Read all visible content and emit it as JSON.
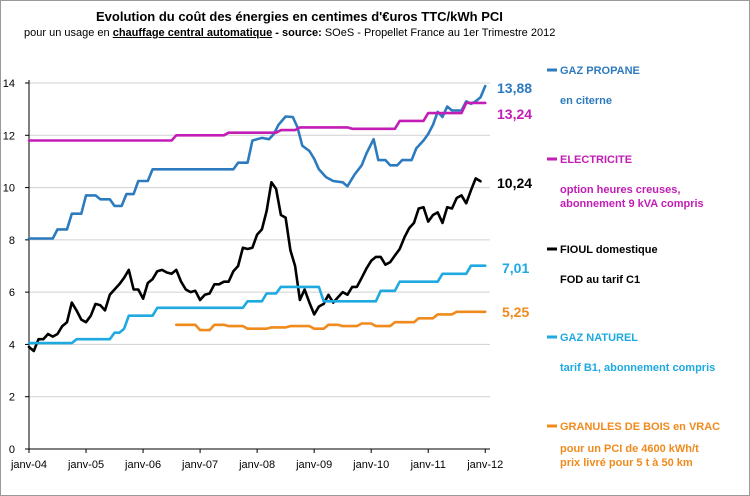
{
  "header": {
    "title": "Evolution du coût des énergies en centimes d'€uros TTC/kWh PCI",
    "subtitle_prefix": "pour un usage en",
    "subtitle_emphasis": "chauffage central automatique",
    "subtitle_sep": " - source:",
    "subtitle_source": " SOeS - Propellet France au 1er Trimestre 2012"
  },
  "chart_data": {
    "type": "line",
    "title": "Evolution du coût des énergies en centimes d'€uros TTC/kWh PCI",
    "ylim": [
      0,
      14
    ],
    "yticks": [
      "0",
      "2",
      "4",
      "6",
      "8",
      "10",
      "12",
      "14"
    ],
    "xlim": [
      0,
      97
    ],
    "xtick_labels": [
      "janv-04",
      "janv-05",
      "janv-06",
      "janv-07",
      "janv-08",
      "janv-09",
      "janv-10",
      "janv-11",
      "janv-12"
    ],
    "grid": "horizontal",
    "legend_position": "right",
    "series": [
      {
        "name": "GAZ PROPANE",
        "description": [
          "en citerne"
        ],
        "end_label": "13,88",
        "color": "#2d7bbf",
        "points": [
          [
            0,
            8.05
          ],
          [
            5,
            8.05
          ],
          [
            6,
            8.4
          ],
          [
            8,
            8.4
          ],
          [
            9,
            9.0
          ],
          [
            11,
            9.0
          ],
          [
            12,
            9.7
          ],
          [
            14,
            9.7
          ],
          [
            15,
            9.55
          ],
          [
            17,
            9.55
          ],
          [
            18,
            9.3
          ],
          [
            19.5,
            9.3
          ],
          [
            20.5,
            9.75
          ],
          [
            22,
            9.75
          ],
          [
            23,
            10.25
          ],
          [
            25,
            10.25
          ],
          [
            26,
            10.7
          ],
          [
            43,
            10.7
          ],
          [
            44,
            10.95
          ],
          [
            46,
            10.95
          ],
          [
            47,
            11.8
          ],
          [
            49,
            11.9
          ],
          [
            50.5,
            11.85
          ],
          [
            51.5,
            12.05
          ],
          [
            52.5,
            12.4
          ],
          [
            54,
            12.72
          ],
          [
            55.5,
            12.7
          ],
          [
            56.5,
            12.3
          ],
          [
            57.5,
            11.6
          ],
          [
            59,
            11.4
          ],
          [
            60,
            11.1
          ],
          [
            61,
            10.7
          ],
          [
            62.5,
            10.4
          ],
          [
            64,
            10.25
          ],
          [
            66,
            10.2
          ],
          [
            67,
            10.05
          ],
          [
            68.5,
            10.5
          ],
          [
            70,
            10.85
          ],
          [
            71,
            11.3
          ],
          [
            72.5,
            11.85
          ],
          [
            73.5,
            11.05
          ],
          [
            75,
            11.05
          ],
          [
            76,
            10.85
          ],
          [
            77.5,
            10.85
          ],
          [
            78.5,
            11.05
          ],
          [
            80.5,
            11.05
          ],
          [
            81.5,
            11.5
          ],
          [
            83,
            11.8
          ],
          [
            84,
            12.05
          ],
          [
            85,
            12.4
          ],
          [
            86,
            12.9
          ],
          [
            87,
            12.7
          ],
          [
            88,
            13.1
          ],
          [
            89,
            12.95
          ],
          [
            91,
            12.95
          ],
          [
            92,
            13.3
          ],
          [
            93,
            13.2
          ],
          [
            94,
            13.3
          ],
          [
            95,
            13.45
          ],
          [
            96,
            13.88
          ]
        ]
      },
      {
        "name": "ELECTRICITE",
        "description": [
          "option heures creuses,",
          "abonnement 9 kVA compris"
        ],
        "end_label": "13,24",
        "color": "#c21db5",
        "points": [
          [
            0,
            11.8
          ],
          [
            30,
            11.8
          ],
          [
            31,
            12.0
          ],
          [
            41,
            12.0
          ],
          [
            42,
            12.1
          ],
          [
            52,
            12.1
          ],
          [
            53,
            12.2
          ],
          [
            56,
            12.2
          ],
          [
            57,
            12.3
          ],
          [
            67,
            12.3
          ],
          [
            68,
            12.25
          ],
          [
            77,
            12.25
          ],
          [
            78,
            12.55
          ],
          [
            83,
            12.55
          ],
          [
            84,
            12.85
          ],
          [
            91,
            12.85
          ],
          [
            92,
            13.24
          ],
          [
            96,
            13.24
          ]
        ]
      },
      {
        "name": "FIOUL domestique",
        "description": [
          "FOD au tarif C1"
        ],
        "end_label": "10,24",
        "color": "#000000",
        "points": [
          [
            0,
            3.9
          ],
          [
            1,
            3.75
          ],
          [
            2,
            4.2
          ],
          [
            3,
            4.2
          ],
          [
            4,
            4.4
          ],
          [
            5,
            4.3
          ],
          [
            6,
            4.4
          ],
          [
            7,
            4.7
          ],
          [
            8,
            4.85
          ],
          [
            9,
            5.6
          ],
          [
            10,
            5.3
          ],
          [
            11,
            4.95
          ],
          [
            12,
            4.85
          ],
          [
            13,
            5.1
          ],
          [
            14,
            5.55
          ],
          [
            15,
            5.5
          ],
          [
            16,
            5.3
          ],
          [
            17,
            5.9
          ],
          [
            18,
            6.1
          ],
          [
            19,
            6.3
          ],
          [
            20,
            6.55
          ],
          [
            21,
            6.85
          ],
          [
            22,
            6.1
          ],
          [
            23,
            6.1
          ],
          [
            24,
            5.75
          ],
          [
            25,
            6.35
          ],
          [
            26,
            6.5
          ],
          [
            27,
            6.8
          ],
          [
            28,
            6.85
          ],
          [
            29,
            6.75
          ],
          [
            30,
            6.7
          ],
          [
            31,
            6.85
          ],
          [
            32,
            6.4
          ],
          [
            33,
            6.1
          ],
          [
            34,
            6.0
          ],
          [
            35,
            6.05
          ],
          [
            36,
            5.7
          ],
          [
            37,
            5.9
          ],
          [
            38,
            5.95
          ],
          [
            39,
            6.3
          ],
          [
            40,
            6.3
          ],
          [
            41,
            6.4
          ],
          [
            42,
            6.4
          ],
          [
            43,
            6.8
          ],
          [
            44,
            7.0
          ],
          [
            45,
            7.7
          ],
          [
            46,
            7.65
          ],
          [
            47,
            7.7
          ],
          [
            48,
            8.2
          ],
          [
            49,
            8.4
          ],
          [
            50,
            9.1
          ],
          [
            51,
            10.2
          ],
          [
            52,
            9.95
          ],
          [
            53,
            8.95
          ],
          [
            54,
            8.85
          ],
          [
            55,
            7.6
          ],
          [
            56,
            7.0
          ],
          [
            57,
            5.7
          ],
          [
            58,
            6.1
          ],
          [
            59,
            5.6
          ],
          [
            60,
            5.15
          ],
          [
            61,
            5.45
          ],
          [
            62,
            5.55
          ],
          [
            63,
            5.9
          ],
          [
            64,
            5.6
          ],
          [
            65,
            5.8
          ],
          [
            66,
            6.0
          ],
          [
            67,
            5.9
          ],
          [
            68,
            6.2
          ],
          [
            69,
            6.2
          ],
          [
            70,
            6.55
          ],
          [
            71,
            6.9
          ],
          [
            72,
            7.2
          ],
          [
            73,
            7.35
          ],
          [
            74,
            7.35
          ],
          [
            75,
            7.05
          ],
          [
            76,
            7.15
          ],
          [
            77,
            7.4
          ],
          [
            78,
            7.65
          ],
          [
            79,
            8.1
          ],
          [
            80,
            8.45
          ],
          [
            81,
            8.65
          ],
          [
            82,
            9.2
          ],
          [
            83,
            9.25
          ],
          [
            84,
            8.7
          ],
          [
            85,
            8.95
          ],
          [
            86,
            9.05
          ],
          [
            87,
            8.65
          ],
          [
            88,
            9.25
          ],
          [
            89,
            9.2
          ],
          [
            90,
            9.6
          ],
          [
            91,
            9.7
          ],
          [
            92,
            9.4
          ],
          [
            93,
            9.9
          ],
          [
            94,
            10.35
          ],
          [
            95,
            10.24
          ]
        ]
      },
      {
        "name": "GAZ NATUREL",
        "description": [
          "tarif B1, abonnement compris"
        ],
        "end_label": "7,01",
        "color": "#1ea9e0",
        "points": [
          [
            0,
            4.05
          ],
          [
            9,
            4.05
          ],
          [
            10,
            4.2
          ],
          [
            17,
            4.2
          ],
          [
            18,
            4.45
          ],
          [
            19,
            4.45
          ],
          [
            20,
            4.6
          ],
          [
            21,
            5.1
          ],
          [
            26,
            5.1
          ],
          [
            27,
            5.4
          ],
          [
            45,
            5.4
          ],
          [
            46,
            5.65
          ],
          [
            49,
            5.65
          ],
          [
            50,
            5.95
          ],
          [
            52,
            5.95
          ],
          [
            53,
            6.2
          ],
          [
            61,
            6.2
          ],
          [
            62,
            5.65
          ],
          [
            73,
            5.65
          ],
          [
            74,
            6.05
          ],
          [
            77,
            6.05
          ],
          [
            78,
            6.4
          ],
          [
            86,
            6.4
          ],
          [
            87,
            6.7
          ],
          [
            92,
            6.7
          ],
          [
            93,
            7.01
          ],
          [
            96,
            7.01
          ]
        ]
      },
      {
        "name": "GRANULES DE BOIS en VRAC",
        "description": [
          "pour un PCI de 4600 kWh/t",
          "prix livré pour 5 t à 50 km"
        ],
        "end_label": "5,25",
        "color": "#f08a1d",
        "points": [
          [
            31,
            4.75
          ],
          [
            35,
            4.75
          ],
          [
            36,
            4.55
          ],
          [
            38,
            4.55
          ],
          [
            39,
            4.75
          ],
          [
            41,
            4.75
          ],
          [
            42,
            4.7
          ],
          [
            45,
            4.7
          ],
          [
            46,
            4.6
          ],
          [
            50,
            4.6
          ],
          [
            51,
            4.65
          ],
          [
            54,
            4.65
          ],
          [
            55,
            4.7
          ],
          [
            59,
            4.7
          ],
          [
            60,
            4.6
          ],
          [
            62,
            4.6
          ],
          [
            63,
            4.75
          ],
          [
            65,
            4.75
          ],
          [
            66,
            4.7
          ],
          [
            69,
            4.7
          ],
          [
            70,
            4.8
          ],
          [
            72,
            4.8
          ],
          [
            73,
            4.7
          ],
          [
            76,
            4.7
          ],
          [
            77,
            4.85
          ],
          [
            81,
            4.85
          ],
          [
            82,
            5.0
          ],
          [
            85,
            5.0
          ],
          [
            86,
            5.15
          ],
          [
            89,
            5.15
          ],
          [
            90,
            5.25
          ],
          [
            96,
            5.25
          ]
        ]
      }
    ]
  }
}
